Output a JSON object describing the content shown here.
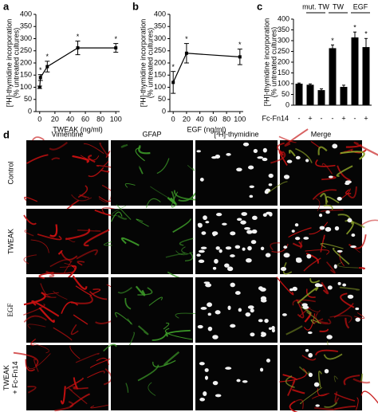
{
  "chart_data": [
    {
      "type": "line",
      "panel": "a",
      "xlabel": "TWEAK (ng/ml)",
      "ylabel": [
        "[³H]-thymidine incorporation",
        "(% untreated cultures)"
      ],
      "x": [
        0,
        1,
        10,
        50,
        100
      ],
      "series": [
        {
          "color": "#000000",
          "values": [
            100,
            140,
            185,
            262,
            262
          ],
          "errors": [
            5,
            12,
            22,
            28,
            18
          ]
        }
      ],
      "significance": [
        null,
        "*",
        "*",
        "*",
        "*"
      ],
      "xlim": [
        -5,
        105
      ],
      "xticks": [
        0,
        20,
        40,
        60,
        80,
        100
      ],
      "ylim": [
        0,
        400
      ],
      "yticks": [
        0,
        50,
        100,
        150,
        200,
        250,
        300,
        350,
        400
      ]
    },
    {
      "type": "line",
      "panel": "b",
      "xlabel": "EGF (ng/ml)",
      "ylabel": [
        "[³H]-thymidine incorporation",
        "(% untreated cultures)"
      ],
      "x": [
        0,
        20,
        100
      ],
      "series": [
        {
          "color": "#000000",
          "values": [
            120,
            240,
            225
          ],
          "errors": [
            45,
            40,
            32
          ]
        }
      ],
      "significance": [
        "*",
        "*",
        "*"
      ],
      "xlim": [
        -5,
        105
      ],
      "xticks": [
        0,
        20,
        40,
        60,
        80,
        100
      ],
      "ylim": [
        0,
        400
      ],
      "yticks": [
        0,
        50,
        100,
        150,
        200,
        250,
        300,
        350,
        400
      ]
    },
    {
      "type": "bar",
      "panel": "c",
      "ylabel": [
        "[³H]-thymidine incorporation",
        "(% untreated cultures)"
      ],
      "category_axis_label": "Fc-Fn14",
      "categories": [
        "-",
        "+",
        "-",
        "-",
        "+",
        "-",
        "+"
      ],
      "groups": [
        null,
        "mut. TW",
        "mut. TW",
        "TW",
        "TW",
        "EGF",
        "EGF"
      ],
      "series": [
        {
          "color": "#000000",
          "values": [
            100,
            95,
            70,
            265,
            85,
            315,
            270
          ],
          "errors": [
            3,
            4,
            6,
            15,
            8,
            25,
            40
          ]
        }
      ],
      "significance": [
        null,
        null,
        null,
        "*",
        null,
        "*",
        "*"
      ],
      "ylim": [
        0,
        400
      ],
      "yticks": [
        0,
        50,
        100,
        150,
        200,
        250,
        300,
        350,
        400
      ]
    }
  ],
  "figure_d": {
    "panel": "d",
    "columns": [
      "Vimentine",
      "GFAP",
      "[³H]-thymidine",
      "Merge"
    ],
    "rows": [
      [
        "Control"
      ],
      [
        "TWEAK"
      ],
      [
        "EGF"
      ],
      [
        "TWEAK",
        "+ Fc-Fn14"
      ]
    ]
  }
}
